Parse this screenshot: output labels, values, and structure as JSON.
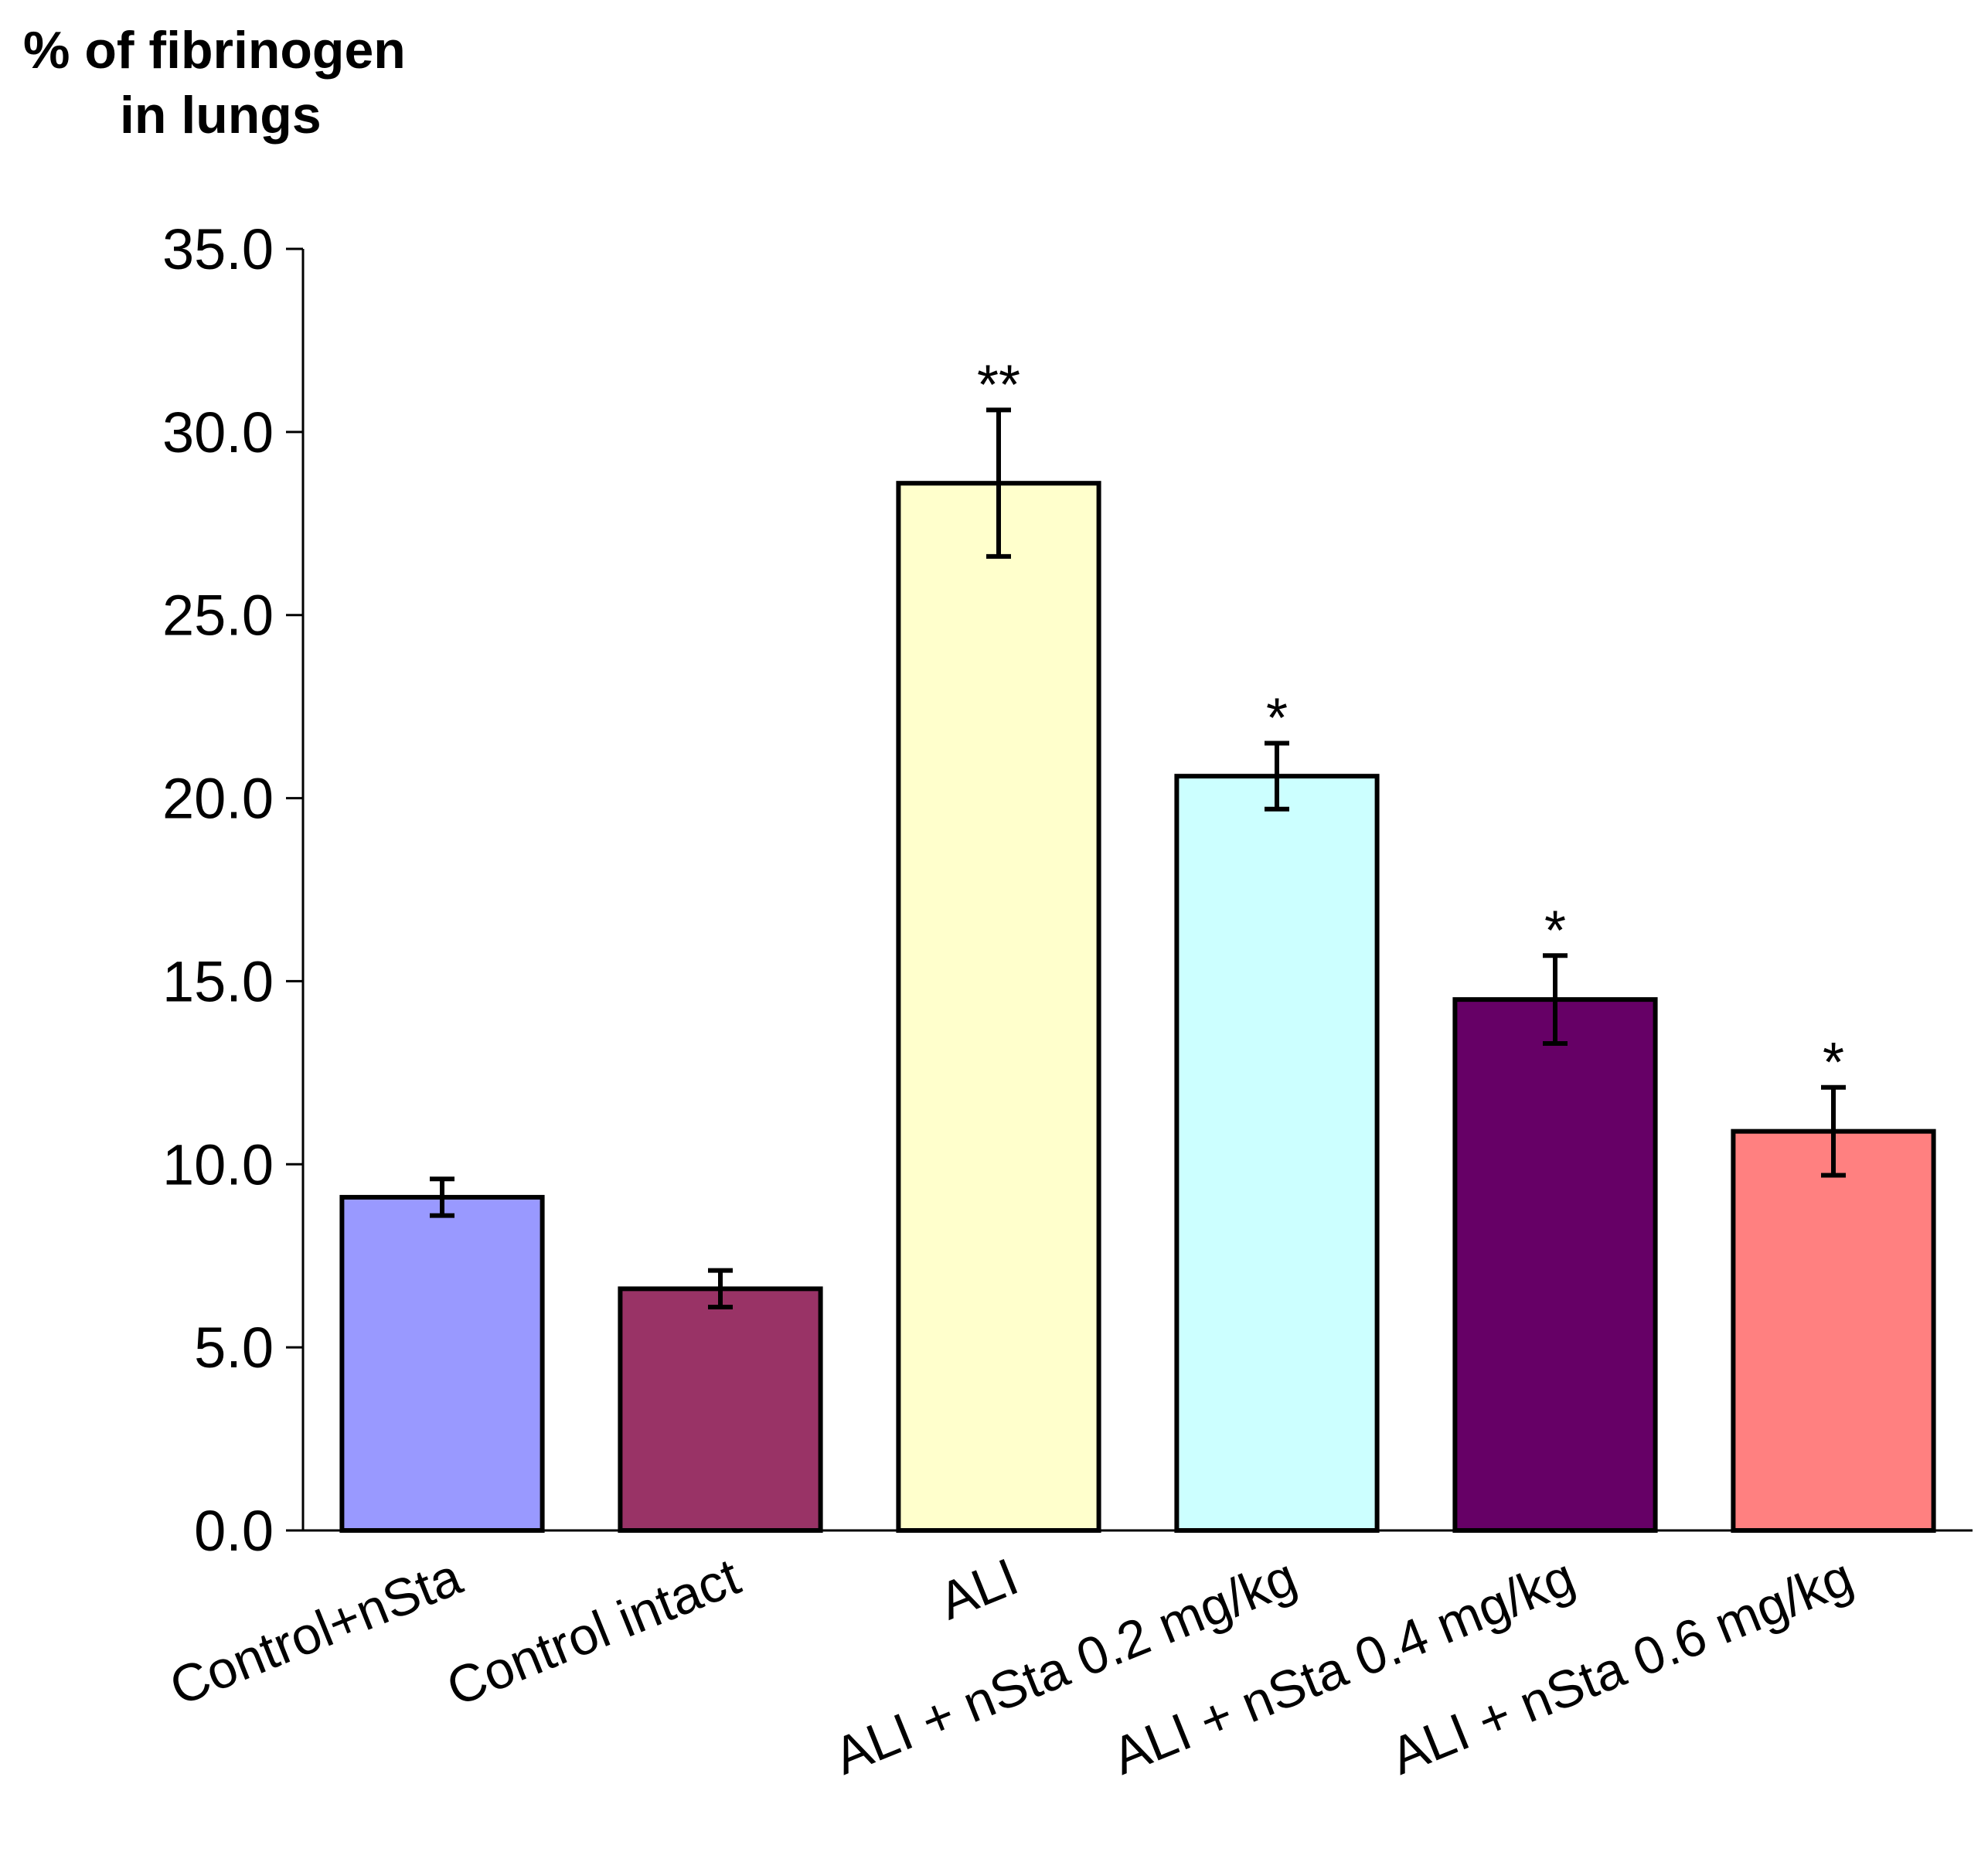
{
  "chart_data": {
    "type": "bar",
    "title": "",
    "ylabel_lines": [
      "% of fibrinogen",
      "in lungs"
    ],
    "xlabel": "",
    "ylim": [
      0,
      35
    ],
    "yticks": [
      0,
      5,
      10,
      15,
      20,
      25,
      30,
      35
    ],
    "ytick_labels": [
      "0.0",
      "5.0",
      "10.0",
      "15.0",
      "20.0",
      "25.0",
      "30.0",
      "35.0"
    ],
    "categories": [
      "Control+nSta",
      "Control intact",
      "ALI",
      "ALI + nSta 0.2 mg/kg",
      "ALI + nSta 0.4 mg/kg",
      "ALI + nSta 0.6 mg/kg"
    ],
    "values": [
      9.1,
      6.6,
      28.6,
      20.6,
      14.5,
      10.9
    ],
    "errors": [
      0.5,
      0.5,
      2.0,
      0.9,
      1.2,
      1.2
    ],
    "significance": [
      "",
      "",
      "**",
      "*",
      "*",
      "*"
    ],
    "colors": [
      "#9999ff",
      "#993366",
      "#ffffcc",
      "#ccffff",
      "#660066",
      "#ff8080"
    ],
    "grid": false,
    "legend": "none"
  }
}
